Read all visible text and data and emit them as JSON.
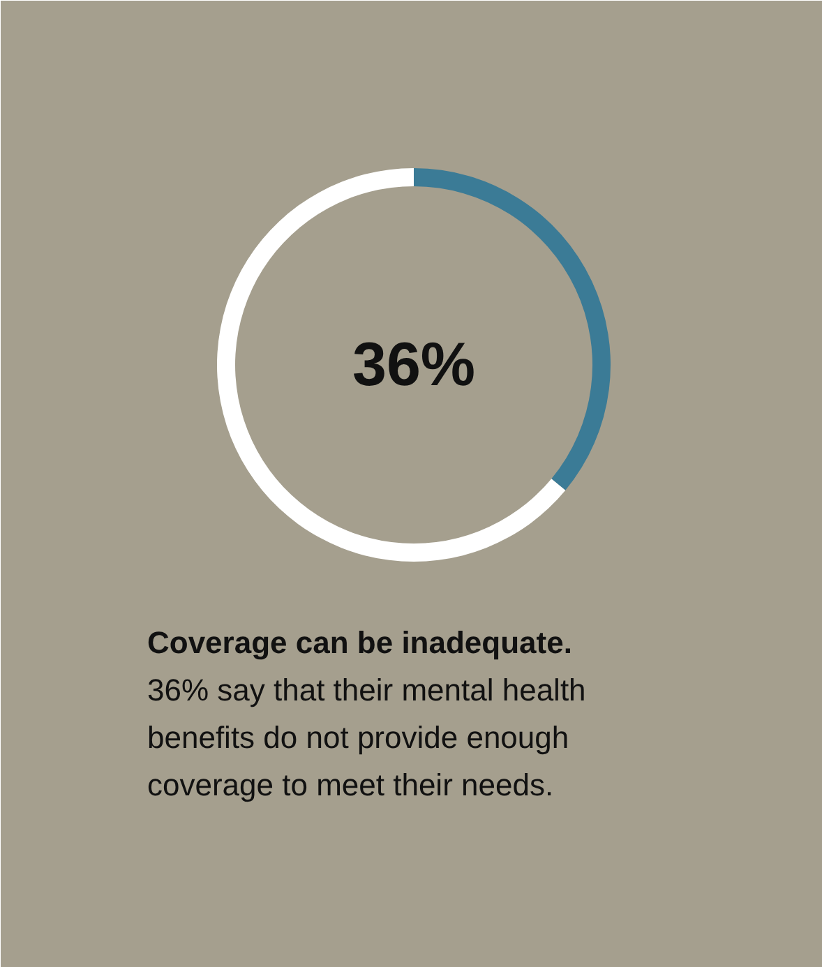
{
  "chart_data": {
    "type": "donut",
    "title": "Coverage can be inadequate.",
    "subtitle": "36% say that their mental health benefits do not provide enough coverage to meet their needs.",
    "categories": [
      null,
      null
    ],
    "values": [
      36,
      64
    ],
    "colors": [
      "#3b7b96",
      "#ffffff"
    ],
    "value_labels": [
      "36%",
      null
    ]
  }
}
